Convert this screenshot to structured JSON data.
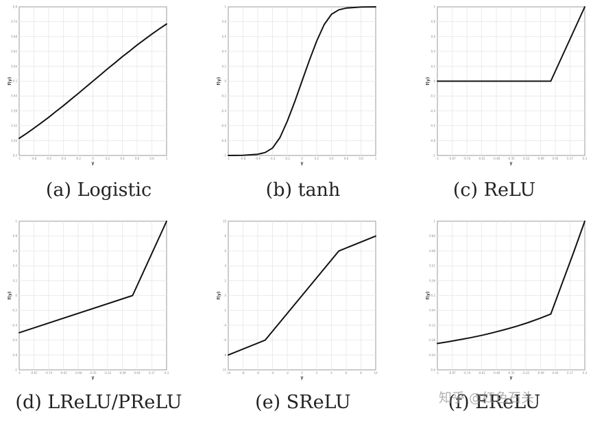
{
  "chart_data": [
    {
      "type": "line",
      "caption": "(a) Logistic",
      "xlabel": "y",
      "ylabel": "f(y)",
      "xlim": [
        -1,
        1
      ],
      "ylim": [
        0.2,
        0.8
      ],
      "grid": true,
      "series": [
        {
          "x": [
            -1,
            -0.9,
            -0.8,
            -0.7,
            -0.6,
            -0.5,
            -0.4,
            -0.3,
            -0.2,
            -0.1,
            0,
            0.1,
            0.2,
            0.3,
            0.4,
            0.5,
            0.6,
            0.7,
            0.8,
            0.9,
            1
          ],
          "y": [
            0.269,
            0.289,
            0.31,
            0.332,
            0.354,
            0.378,
            0.401,
            0.426,
            0.45,
            0.475,
            0.5,
            0.525,
            0.55,
            0.574,
            0.599,
            0.622,
            0.646,
            0.668,
            0.69,
            0.711,
            0.731
          ]
        }
      ]
    },
    {
      "type": "line",
      "caption": "(b) tanh",
      "xlabel": "y",
      "ylabel": "f(y)",
      "xlim": [
        -1,
        1
      ],
      "ylim": [
        -1,
        1
      ],
      "grid": true,
      "series": [
        {
          "x": [
            -1,
            -0.8,
            -0.6,
            -0.5,
            -0.4,
            -0.3,
            -0.2,
            -0.1,
            0,
            0.1,
            0.2,
            0.3,
            0.4,
            0.5,
            0.6,
            0.8,
            1
          ],
          "y": [
            -1,
            -0.998,
            -0.983,
            -0.96,
            -0.9,
            -0.76,
            -0.54,
            -0.28,
            0,
            0.28,
            0.54,
            0.76,
            0.9,
            0.96,
            0.983,
            0.998,
            1
          ]
        }
      ]
    },
    {
      "type": "line",
      "caption": "(c) ReLU",
      "xlabel": "y",
      "ylabel": "f(y)",
      "xlim": [
        -1,
        0.3
      ],
      "ylim": [
        -1,
        1
      ],
      "grid": true,
      "series": [
        {
          "x": [
            -1,
            0,
            0.3
          ],
          "y": [
            0,
            0,
            1
          ]
        }
      ]
    },
    {
      "type": "line",
      "caption": "(d) LReLU/PReLU",
      "xlabel": "y",
      "ylabel": "f(y)",
      "xlim": [
        -1,
        0.3
      ],
      "ylim": [
        -1,
        1
      ],
      "grid": true,
      "series": [
        {
          "x": [
            -1,
            0,
            0.3
          ],
          "y": [
            -0.5,
            0,
            1
          ]
        }
      ]
    },
    {
      "type": "line",
      "caption": "(e) SReLU",
      "xlabel": "y",
      "ylabel": "f(y)",
      "xlim": [
        -10,
        10
      ],
      "ylim": [
        -10,
        10
      ],
      "grid": true,
      "series": [
        {
          "x": [
            -10,
            -5,
            5,
            10
          ],
          "y": [
            -8,
            -6,
            6,
            8
          ]
        }
      ]
    },
    {
      "type": "line",
      "caption": "(f) EReLU",
      "xlabel": "y",
      "ylabel": "f(y)",
      "xlim": [
        -1,
        0.3
      ],
      "ylim": [
        -0.6,
        1
      ],
      "grid": true,
      "series": [
        {
          "x": [
            -1,
            -0.9,
            -0.8,
            -0.7,
            -0.6,
            -0.5,
            -0.4,
            -0.3,
            -0.2,
            -0.1,
            0,
            0.1,
            0.2,
            0.3
          ],
          "y": [
            -0.316,
            -0.297,
            -0.275,
            -0.252,
            -0.226,
            -0.197,
            -0.165,
            -0.13,
            -0.091,
            -0.048,
            0,
            0.33,
            0.66,
            1
          ]
        }
      ]
    }
  ],
  "watermark": "知乎 @红色石头"
}
